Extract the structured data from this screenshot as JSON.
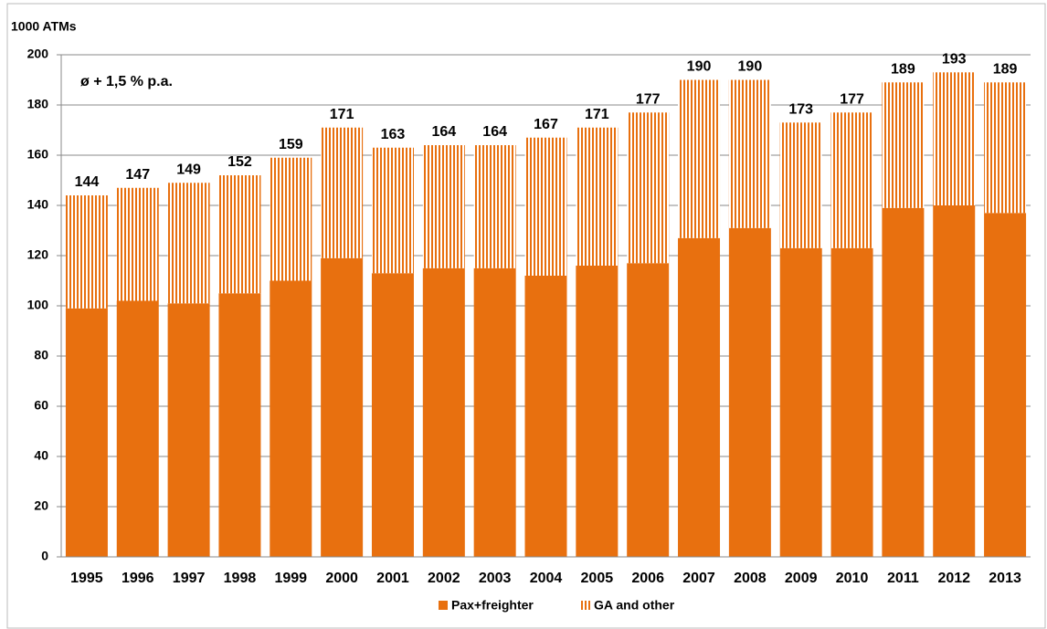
{
  "chart_data": {
    "type": "stacked_bar",
    "y_label": "1000 ATMs",
    "annotation": "ø  + 1,5 % p.a.",
    "categories": [
      "1995",
      "1996",
      "1997",
      "1998",
      "1999",
      "2000",
      "2001",
      "2002",
      "2003",
      "2004",
      "2005",
      "2006",
      "2007",
      "2008",
      "2009",
      "2010",
      "2011",
      "2012",
      "2013"
    ],
    "series": [
      {
        "name": "Pax+freighter",
        "color": "#e8700f",
        "pattern": "solid",
        "values": [
          99,
          102,
          101,
          105,
          110,
          119,
          113,
          115,
          115,
          112,
          116,
          117,
          127,
          131,
          123,
          123,
          139,
          140,
          137
        ]
      },
      {
        "name": "GA and other",
        "color": "#e8700f",
        "pattern": "vertical-stripes",
        "values": [
          45,
          45,
          48,
          47,
          49,
          52,
          50,
          49,
          49,
          55,
          55,
          60,
          63,
          59,
          50,
          54,
          50,
          53,
          52
        ]
      }
    ],
    "totals": [
      144,
      147,
      149,
      152,
      159,
      171,
      163,
      164,
      164,
      167,
      171,
      177,
      190,
      190,
      173,
      177,
      189,
      193,
      189
    ],
    "ylim": [
      0,
      200
    ],
    "yticks": [
      0,
      20,
      40,
      60,
      80,
      100,
      120,
      140,
      160,
      180,
      200
    ],
    "grid": true,
    "legend": "bottom"
  }
}
